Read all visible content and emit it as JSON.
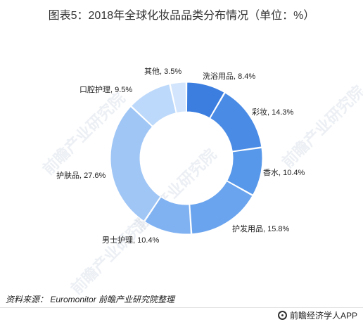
{
  "title": "图表5：2018年全球化妆品品类分布情况（单位：%）",
  "chart_data": {
    "type": "pie",
    "variant": "donut",
    "categories": [
      "洗浴用品",
      "彩妆",
      "香水",
      "护发用品",
      "男士护理",
      "护肤品",
      "口腔护理",
      "其他"
    ],
    "values": [
      8.4,
      14.3,
      10.4,
      15.8,
      10.4,
      27.6,
      9.5,
      3.5
    ],
    "labels": [
      "洗浴用品, 8.4%",
      "彩妆, 14.3%",
      "香水, 10.4%",
      "护发用品, 15.8%",
      "男士护理, 10.4%",
      "护肤品, 27.6%",
      "口腔护理, 9.5%",
      "其他, 3.5%"
    ],
    "colors": [
      "#3b7ee0",
      "#4a8be6",
      "#5898ea",
      "#6aa4ee",
      "#80b2f2",
      "#a0c6f6",
      "#bcd8fa",
      "#d2e5fc"
    ]
  },
  "source": "资料来源：  Euromonitor 前瞻产业研究院整理",
  "brand": "前瞻经济学人APP",
  "watermark": "前瞻产业研究院"
}
